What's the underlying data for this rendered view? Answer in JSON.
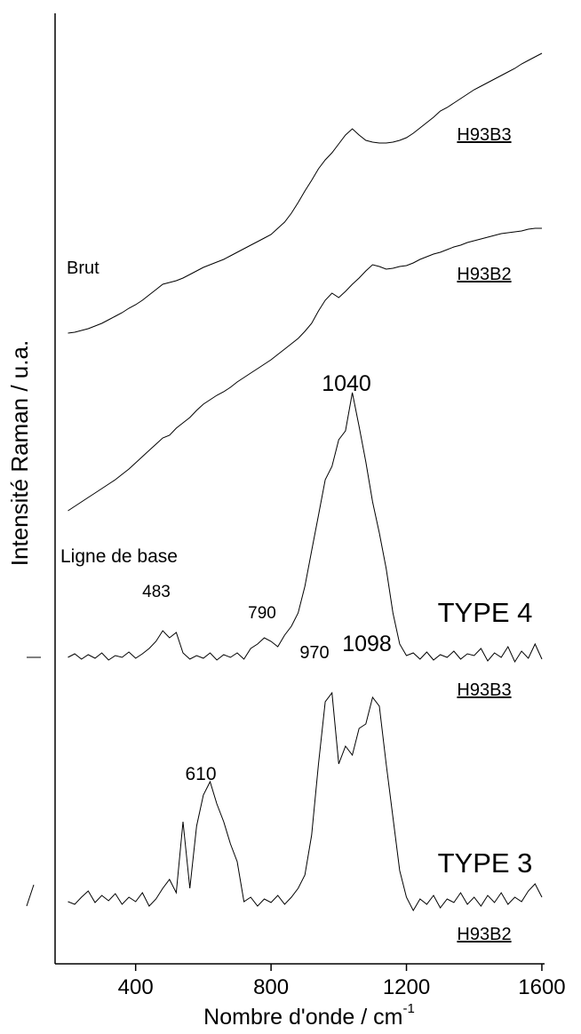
{
  "chart_data": {
    "type": "line",
    "x_label": "Nombre  d'onde  /  cm",
    "x_label_sup": "-1",
    "y_label": "Intensité  Raman  /  u.a.",
    "annotations": [
      "Brut",
      "Ligne de base",
      "1040",
      "483",
      "790",
      "970",
      "1098",
      "610",
      "TYPE 4",
      "TYPE 3"
    ],
    "xlim": [
      162,
      1608
    ],
    "ylim": [
      0,
      107
    ],
    "xticks": [
      400,
      800,
      1200,
      1600
    ],
    "x": [
      200,
      220,
      240,
      260,
      280,
      300,
      320,
      340,
      360,
      380,
      400,
      420,
      440,
      460,
      480,
      500,
      520,
      540,
      560,
      580,
      600,
      620,
      640,
      660,
      680,
      700,
      720,
      740,
      760,
      780,
      800,
      820,
      840,
      860,
      880,
      900,
      920,
      940,
      960,
      980,
      1000,
      1020,
      1040,
      1060,
      1080,
      1100,
      1120,
      1140,
      1160,
      1180,
      1200,
      1220,
      1240,
      1260,
      1280,
      1300,
      1320,
      1340,
      1360,
      1380,
      1400,
      1420,
      1440,
      1460,
      1480,
      1500,
      1520,
      1540,
      1560,
      1580,
      1600
    ],
    "series": [
      {
        "name": "H93B3",
        "color": "#000000",
        "values": [
          71.0,
          71.1,
          71.3,
          71.5,
          71.8,
          72.1,
          72.5,
          72.9,
          73.3,
          73.8,
          74.2,
          74.7,
          75.3,
          75.9,
          76.5,
          76.7,
          76.9,
          77.2,
          77.6,
          78.0,
          78.4,
          78.7,
          79.0,
          79.3,
          79.7,
          80.1,
          80.5,
          80.9,
          81.3,
          81.7,
          82.1,
          82.8,
          83.5,
          84.5,
          85.7,
          87.0,
          88.2,
          89.5,
          90.5,
          91.3,
          92.3,
          93.3,
          94.0,
          93.3,
          92.7,
          92.5,
          92.4,
          92.4,
          92.5,
          92.7,
          93.0,
          93.5,
          94.1,
          94.7,
          95.3,
          96.0,
          96.4,
          96.9,
          97.4,
          97.9,
          98.4,
          98.8,
          99.2,
          99.6,
          100.0,
          100.4,
          100.8,
          101.3,
          101.7,
          102.1,
          102.5
        ]
      },
      {
        "name": "H93B2",
        "color": "#000000",
        "values": [
          51.0,
          51.5,
          52.0,
          52.5,
          53.0,
          53.5,
          54.0,
          54.5,
          55.1,
          55.7,
          56.4,
          57.1,
          57.8,
          58.5,
          59.2,
          59.5,
          60.3,
          60.9,
          61.5,
          62.3,
          63.0,
          63.5,
          64.0,
          64.4,
          64.9,
          65.5,
          66.0,
          66.5,
          67.0,
          67.5,
          68.0,
          68.6,
          69.2,
          69.8,
          70.4,
          71.2,
          72.1,
          73.5,
          74.7,
          75.5,
          75.0,
          75.7,
          76.5,
          77.2,
          78.0,
          78.7,
          78.5,
          78.2,
          78.3,
          78.5,
          78.6,
          78.9,
          79.3,
          79.6,
          79.9,
          80.1,
          80.4,
          80.7,
          80.9,
          81.2,
          81.4,
          81.6,
          81.8,
          82.0,
          82.2,
          82.3,
          82.4,
          82.5,
          82.7,
          82.8,
          82.8
        ]
      },
      {
        "name": "H93B3",
        "color": "#000000",
        "values": [
          34.5,
          34.9,
          34.3,
          34.8,
          34.4,
          35.0,
          34.2,
          34.7,
          34.5,
          35.1,
          34.4,
          34.9,
          35.5,
          36.3,
          37.5,
          36.7,
          37.3,
          35.0,
          34.3,
          34.7,
          34.4,
          35.0,
          34.2,
          34.8,
          34.5,
          35.0,
          34.3,
          35.5,
          36.0,
          36.7,
          36.3,
          35.7,
          37.0,
          38.0,
          39.5,
          42.5,
          46.5,
          50.5,
          54.5,
          56.0,
          59.0,
          60.0,
          64.3,
          60.5,
          56.5,
          52.0,
          48.5,
          44.5,
          39.5,
          36.0,
          34.7,
          35.0,
          34.3,
          35.1,
          34.2,
          34.8,
          34.5,
          35.2,
          34.3,
          34.9,
          34.7,
          35.5,
          34.1,
          35.0,
          34.5,
          35.7,
          34.0,
          35.2,
          34.4,
          36.0,
          34.3
        ]
      },
      {
        "name": "H93B2",
        "color": "#000000",
        "values": [
          7.0,
          6.7,
          7.5,
          8.2,
          6.9,
          7.7,
          7.1,
          7.9,
          6.7,
          7.5,
          7.0,
          8.0,
          6.5,
          7.3,
          8.5,
          9.5,
          8.0,
          16.0,
          8.5,
          15.5,
          19.0,
          20.5,
          18.0,
          16.0,
          13.5,
          11.5,
          7.0,
          7.5,
          6.5,
          7.3,
          6.9,
          7.7,
          6.7,
          7.5,
          8.5,
          10.0,
          14.5,
          22.5,
          29.5,
          30.5,
          22.5,
          24.5,
          23.5,
          26.5,
          27.0,
          30.0,
          29.0,
          22.5,
          16.5,
          10.5,
          7.5,
          6.0,
          7.3,
          6.7,
          7.7,
          6.3,
          7.3,
          6.9,
          8.0,
          6.7,
          7.5,
          6.5,
          7.7,
          6.9,
          8.0,
          6.7,
          7.5,
          7.0,
          8.2,
          9.0,
          7.5
        ]
      }
    ]
  }
}
